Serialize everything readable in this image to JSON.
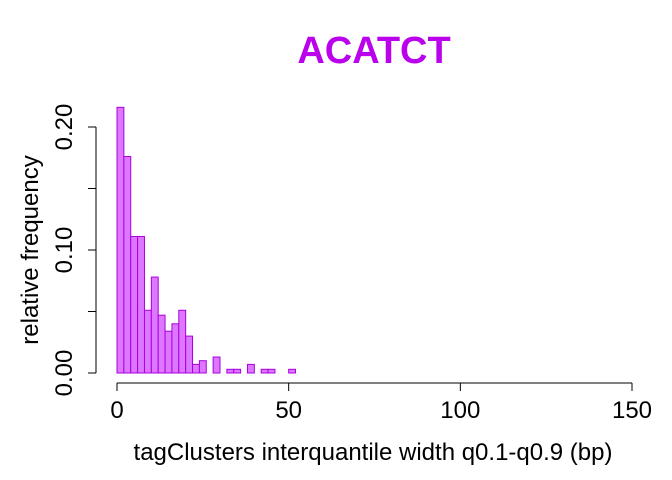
{
  "chart_data": {
    "type": "bar",
    "title": "ACATCT",
    "xlabel": "tagClusters interquantile width q0.1-q0.9 (bp)",
    "ylabel": "relative frequency",
    "xlim": [
      0,
      150
    ],
    "ylim": [
      0,
      0.2
    ],
    "xticks": [
      "0",
      "50",
      "100",
      "150"
    ],
    "yticks": [
      "0.00",
      "0.10",
      "0.20"
    ],
    "bin_width": 2,
    "bins_start": [
      0,
      2,
      4,
      6,
      8,
      10,
      12,
      14,
      16,
      18,
      20,
      22,
      24,
      26,
      28,
      30,
      32,
      34,
      36,
      38,
      40,
      42,
      44,
      46,
      48,
      50
    ],
    "values": [
      0.216,
      0.176,
      0.111,
      0.111,
      0.051,
      0.078,
      0.047,
      0.034,
      0.04,
      0.051,
      0.03,
      0.007,
      0.01,
      0.0,
      0.013,
      0.0,
      0.003,
      0.003,
      0.0,
      0.007,
      0.0,
      0.003,
      0.003,
      0.0,
      0.0,
      0.003
    ],
    "grid": false,
    "colors": {
      "title": "#bb00ee",
      "bar_fill": "#dd77ff",
      "bar_stroke": "#aa00dd",
      "axis": "#000000"
    }
  }
}
